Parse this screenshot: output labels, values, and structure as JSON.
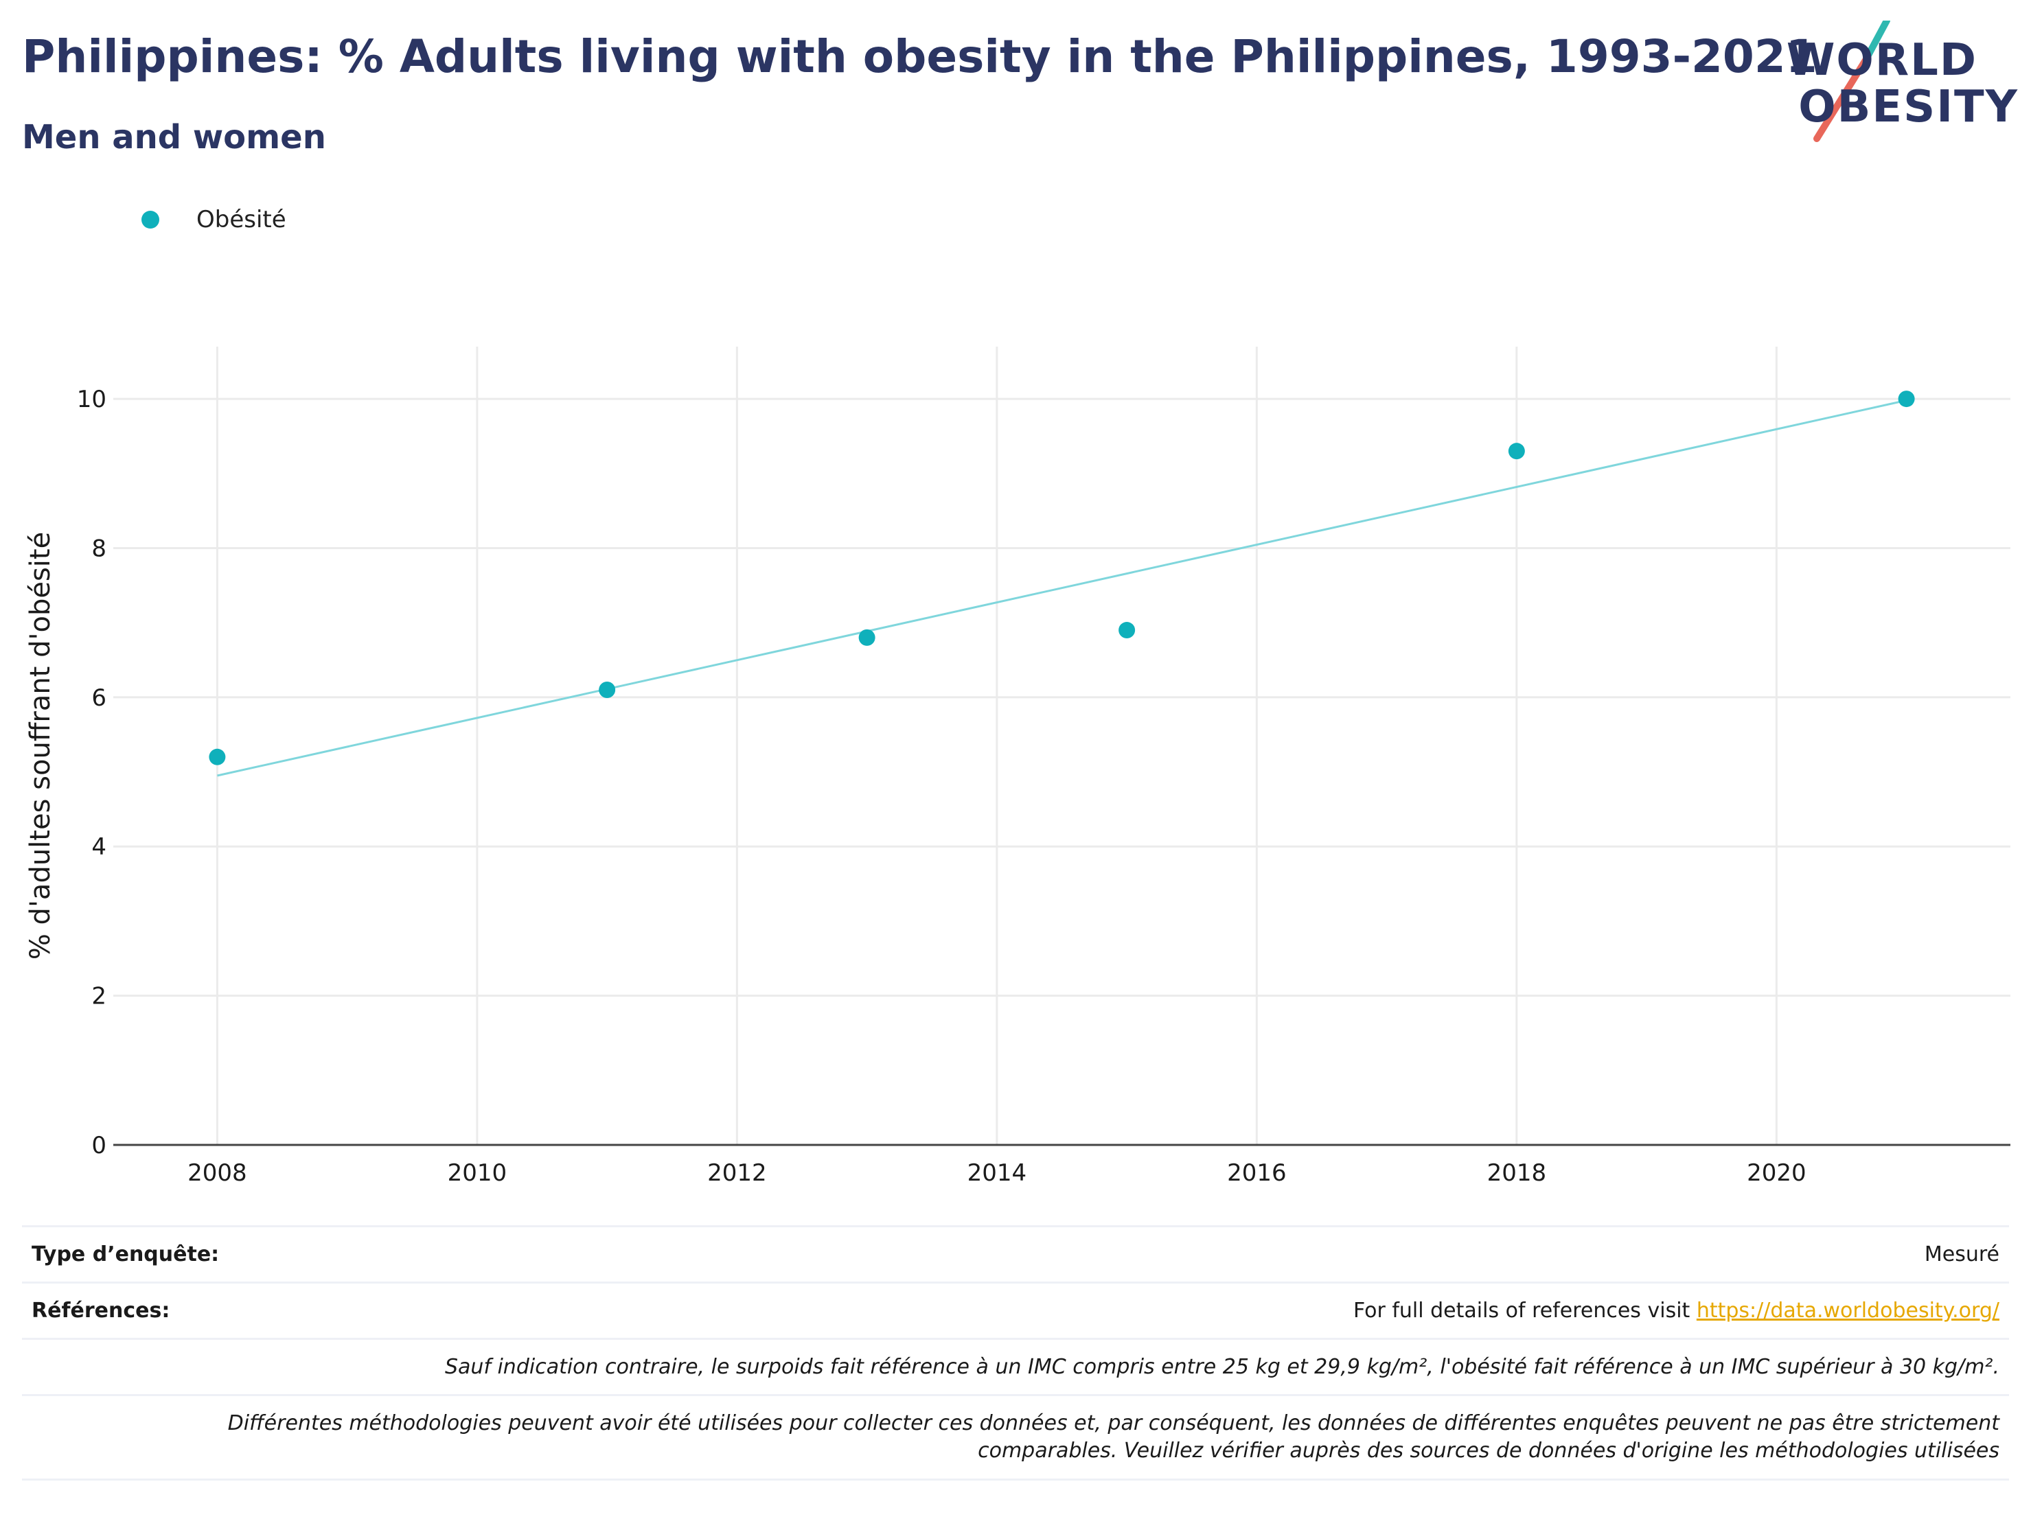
{
  "header": {
    "title": "Philippines: % Adults living with obesity in the Philippines, 1993-2021",
    "subtitle": "Men and women"
  },
  "logo": {
    "line1": "WORLD",
    "line2": "OBESITY",
    "colors": {
      "text": "#2b3563",
      "slash_top": "#2fb8b0",
      "slash_bottom": "#e8675a"
    }
  },
  "colors": {
    "series": "#0fb0bb",
    "trend": "#7fd6dc",
    "grid": "#ebebeb",
    "axis": "#444444",
    "link": "#e6a700"
  },
  "chart_data": {
    "type": "scatter",
    "title": "Philippines: % Adults living with obesity in the Philippines, 1993-2021",
    "subtitle": "Men and women",
    "xlabel": "",
    "ylabel": "% d'adultes souffrant d'obésité",
    "xlim": [
      2007.2,
      2021.8
    ],
    "ylim": [
      0,
      10.7
    ],
    "xticks": [
      2008,
      2010,
      2012,
      2014,
      2016,
      2018,
      2020
    ],
    "yticks": [
      0,
      2,
      4,
      6,
      8,
      10
    ],
    "grid": true,
    "legend_position": "top-left",
    "series": [
      {
        "name": "Obésité",
        "x": [
          2008,
          2011,
          2013,
          2015,
          2018,
          2021
        ],
        "y": [
          5.2,
          6.1,
          6.8,
          6.9,
          9.3,
          10.0
        ]
      }
    ],
    "trendline": {
      "x": [
        2008,
        2021
      ],
      "y": [
        4.95,
        9.98
      ]
    }
  },
  "table": {
    "survey_type_label": "Type d’enquête:",
    "survey_type_value": "Mesuré",
    "references_label": "Références:",
    "references_text": "For full details of references visit ",
    "references_link": "https://data.worldobesity.org/",
    "note1": "Sauf indication contraire, le surpoids fait référence à un IMC compris entre 25 kg et 29,9 kg/m², l'obésité fait référence à un IMC supérieur à 30 kg/m².",
    "note2_line1": "Différentes méthodologies peuvent avoir été utilisées pour collecter ces données et, par conséquent, les données de différentes enquêtes peuvent ne pas être strictement",
    "note2_line2": "comparables. Veuillez vérifier auprès des sources de données d'origine les méthodologies utilisées"
  }
}
